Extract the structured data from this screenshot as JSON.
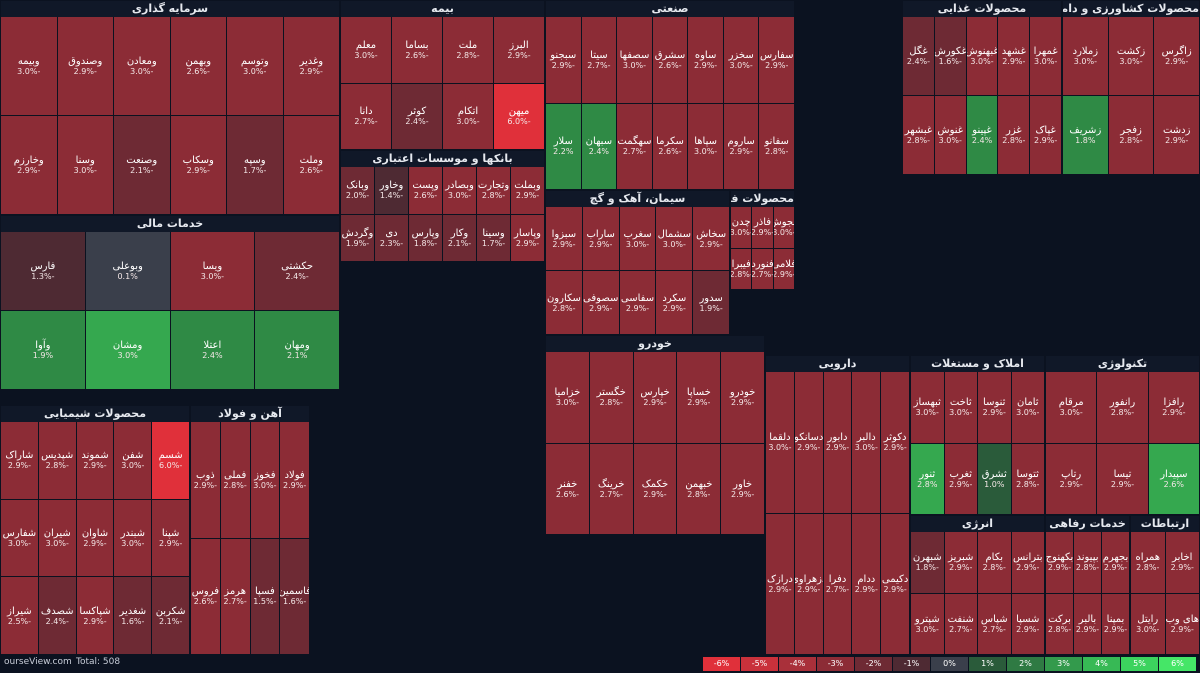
{
  "footer": {
    "brand": "ourseView.com",
    "total": "Total: 508",
    "legend": [
      {
        "label": "-6%",
        "color": "#e0303a"
      },
      {
        "label": "-5%",
        "color": "#c9313b"
      },
      {
        "label": "-4%",
        "color": "#a9303a"
      },
      {
        "label": "-3%",
        "color": "#8c2c36"
      },
      {
        "label": "-2%",
        "color": "#6e2a34"
      },
      {
        "label": "-1%",
        "color": "#4e2a33"
      },
      {
        "label": "0%",
        "color": "#3a3f4b"
      },
      {
        "label": "1%",
        "color": "#2a5b3a"
      },
      {
        "label": "2%",
        "color": "#2f7a43"
      },
      {
        "label": "3%",
        "color": "#339a4c"
      },
      {
        "label": "4%",
        "color": "#37b955"
      },
      {
        "label": "5%",
        "color": "#3cd35e"
      },
      {
        "label": "6%",
        "color": "#45e667"
      }
    ]
  },
  "sectors": [
    {
      "id": "bank",
      "title": "بانکها و موسسات اعتباری",
      "cols": 6,
      "tiles": [
        {
          "s": "وبملت",
          "p": -2.9
        },
        {
          "s": "وتجارت",
          "p": -2.8
        },
        {
          "s": "وبصادر",
          "p": -3.0
        },
        {
          "s": "وپست",
          "p": -2.6
        },
        {
          "s": "وخاور",
          "p": -1.4
        },
        {
          "s": "وبانک",
          "p": -2.0
        },
        {
          "s": "وپاسار",
          "p": -2.9
        },
        {
          "s": "وسینا",
          "p": -1.7
        },
        {
          "s": "وکار",
          "p": -2.1
        },
        {
          "s": "وپارس",
          "p": -1.8
        },
        {
          "s": "دی",
          "p": -2.3
        },
        {
          "s": "وگردش",
          "p": -1.9
        }
      ]
    },
    {
      "id": "insurance",
      "title": "بیمه",
      "cols": 4,
      "tiles": [
        {
          "s": "البرز",
          "p": -2.9
        },
        {
          "s": "ملت",
          "p": -2.8
        },
        {
          "s": "بساما",
          "p": -2.6
        },
        {
          "s": "معلم",
          "p": -3.0
        },
        {
          "s": "میهن",
          "p": -6.0
        },
        {
          "s": "اتکام",
          "p": -3.0
        },
        {
          "s": "کوثر",
          "p": -2.4
        },
        {
          "s": "دانا",
          "p": -2.7
        }
      ]
    },
    {
      "id": "investment",
      "title": "سرمایه گذاری",
      "cols": 6,
      "tiles": [
        {
          "s": "وغدیر",
          "p": -2.9
        },
        {
          "s": "وتوسم",
          "p": -3.0
        },
        {
          "s": "وبهمن",
          "p": -2.6
        },
        {
          "s": "ومعادن",
          "p": -3.0
        },
        {
          "s": "وصندوق",
          "p": -2.9
        },
        {
          "s": "وبیمه",
          "p": -3.0
        },
        {
          "s": "وملت",
          "p": -2.6
        },
        {
          "s": "وسپه",
          "p": -1.7
        },
        {
          "s": "وسکاب",
          "p": -2.9
        },
        {
          "s": "وصنعت",
          "p": -2.1
        },
        {
          "s": "وسنا",
          "p": -3.0
        },
        {
          "s": "وخارزم",
          "p": -2.9
        }
      ]
    },
    {
      "id": "misc",
      "title": "خدمات مالی",
      "cols": 4,
      "tiles": [
        {
          "s": "حکشتی",
          "p": -2.4
        },
        {
          "s": "ویسا",
          "p": -3.0
        },
        {
          "s": "وبوعلی",
          "p": 0.1
        },
        {
          "s": "فارس",
          "p": -1.3
        },
        {
          "s": "ومهان",
          "p": 2.1
        },
        {
          "s": "اعتلا",
          "p": 2.4
        },
        {
          "s": "ومشان",
          "p": 3.0
        },
        {
          "s": "وآوا",
          "p": 1.9
        }
      ]
    },
    {
      "id": "industrial",
      "title": "صنعتی",
      "cols": 7,
      "tiles": [
        {
          "s": "سفارس",
          "p": -2.9
        },
        {
          "s": "سخزر",
          "p": -3.0
        },
        {
          "s": "ساوه",
          "p": -2.9
        },
        {
          "s": "سشرق",
          "p": -2.6
        },
        {
          "s": "سصفها",
          "p": -3.0
        },
        {
          "s": "سیتا",
          "p": -2.7
        },
        {
          "s": "سبجنو",
          "p": -2.9
        },
        {
          "s": "سفانو",
          "p": -2.8
        },
        {
          "s": "ساروم",
          "p": -2.9
        },
        {
          "s": "سپاها",
          "p": -3.0
        },
        {
          "s": "سکرما",
          "p": -2.6
        },
        {
          "s": "سهگمت",
          "p": -2.7
        },
        {
          "s": "سبهان",
          "p": 2.4
        },
        {
          "s": "سلار",
          "p": 2.2
        }
      ]
    },
    {
      "id": "metal",
      "title": "محصولات فلزی",
      "cols": 3,
      "tiles": [
        {
          "s": "فجوش",
          "p": -3.0
        },
        {
          "s": "فاذر",
          "p": -2.9
        },
        {
          "s": "چدن",
          "p": -3.0
        },
        {
          "s": "فلامی",
          "p": -2.9
        },
        {
          "s": "فنورد",
          "p": -2.7
        },
        {
          "s": "فیبرا",
          "p": -2.8
        }
      ]
    },
    {
      "id": "foods",
      "title": "محصولات غذایی",
      "cols": 5,
      "tiles": [
        {
          "s": "غمهرا",
          "p": -3.0
        },
        {
          "s": "غشهد",
          "p": -2.9
        },
        {
          "s": "غبهنوش",
          "p": -3.0
        },
        {
          "s": "غکورش",
          "p": -1.6
        },
        {
          "s": "غگل",
          "p": -2.4
        },
        {
          "s": "غپاک",
          "p": -2.9
        },
        {
          "s": "غزر",
          "p": -2.8
        },
        {
          "s": "غپینو",
          "p": 2.4
        },
        {
          "s": "غنوش",
          "p": -3.0
        },
        {
          "s": "غبشهر",
          "p": -2.8
        }
      ]
    },
    {
      "id": "agri",
      "title": "محصولات کشاورزی و دامپروری",
      "cols": 3,
      "tiles": [
        {
          "s": "زاگرس",
          "p": -2.9
        },
        {
          "s": "زکشت",
          "p": -3.0
        },
        {
          "s": "زملارد",
          "p": -3.0
        },
        {
          "s": "زدشت",
          "p": -2.9
        },
        {
          "s": "زفجر",
          "p": -2.8
        },
        {
          "s": "زشریف",
          "p": 1.8
        }
      ]
    },
    {
      "id": "pharma",
      "title": "دارویی",
      "cols": 5,
      "tiles": [
        {
          "s": "دکوثر",
          "p": -2.9
        },
        {
          "s": "دالبر",
          "p": -3.0
        },
        {
          "s": "دابور",
          "p": -2.9
        },
        {
          "s": "دسانکو",
          "p": -2.9
        },
        {
          "s": "دلقما",
          "p": -3.0
        },
        {
          "s": "دکیمی",
          "p": -2.9
        },
        {
          "s": "ددام",
          "p": -2.9
        },
        {
          "s": "دفرا",
          "p": -2.7
        },
        {
          "s": "دزهراوی",
          "p": -2.9
        },
        {
          "s": "درازک",
          "p": -2.9
        }
      ]
    },
    {
      "id": "realestate",
      "title": "املاک و مستغلات",
      "cols": 4,
      "tiles": [
        {
          "s": "ثامان",
          "p": -3.0
        },
        {
          "s": "ثنوسا",
          "p": -2.9
        },
        {
          "s": "ثاخت",
          "p": -3.0
        },
        {
          "s": "ثبهساز",
          "p": -3.0
        },
        {
          "s": "ثتوسا",
          "p": -2.8
        },
        {
          "s": "ثشرق",
          "p": 1.0
        },
        {
          "s": "ثغرب",
          "p": -2.9
        },
        {
          "s": "ثنور",
          "p": 2.8
        }
      ]
    },
    {
      "id": "tech",
      "title": "تکنولوژی",
      "cols": 3,
      "tiles": [
        {
          "s": "رافزا",
          "p": -2.9
        },
        {
          "s": "رانفور",
          "p": -2.8
        },
        {
          "s": "مرقام",
          "p": -3.0
        },
        {
          "s": "سپیدار",
          "p": 2.6
        },
        {
          "s": "تیسا",
          "p": -2.9
        },
        {
          "s": "رتاپ",
          "p": -2.9
        }
      ]
    },
    {
      "id": "chemical",
      "title": "محصولات شیمیایی",
      "cols": 5,
      "tiles": [
        {
          "s": "شسم",
          "p": -6.0
        },
        {
          "s": "شفن",
          "p": -3.0
        },
        {
          "s": "شموند",
          "p": -2.9
        },
        {
          "s": "شپدیس",
          "p": -2.8
        },
        {
          "s": "شاراک",
          "p": -2.9
        },
        {
          "s": "شپنا",
          "p": -2.9
        },
        {
          "s": "شبندر",
          "p": -3.0
        },
        {
          "s": "شاوان",
          "p": -2.9
        },
        {
          "s": "شیران",
          "p": -3.0
        },
        {
          "s": "شفارس",
          "p": -3.0
        },
        {
          "s": "شکربن",
          "p": -2.1
        },
        {
          "s": "شغدیر",
          "p": -1.6
        },
        {
          "s": "شپاکسا",
          "p": -2.9
        },
        {
          "s": "شصدف",
          "p": -2.4
        },
        {
          "s": "شیراز",
          "p": -2.5
        }
      ]
    },
    {
      "id": "iron",
      "title": "آهن و فولاد",
      "cols": 4,
      "tiles": [
        {
          "s": "فولاد",
          "p": -2.9
        },
        {
          "s": "فخوز",
          "p": -3.0
        },
        {
          "s": "فملی",
          "p": -2.8
        },
        {
          "s": "ذوب",
          "p": -2.9
        },
        {
          "s": "فاسمین",
          "p": -1.6
        },
        {
          "s": "فسپا",
          "p": -1.5
        },
        {
          "s": "هرمز",
          "p": -2.7
        },
        {
          "s": "فروس",
          "p": -2.6
        }
      ]
    },
    {
      "id": "auto",
      "title": "خودرو",
      "cols": 5,
      "tiles": [
        {
          "s": "خودرو",
          "p": -2.9
        },
        {
          "s": "خساپا",
          "p": -2.9
        },
        {
          "s": "خپارس",
          "p": -2.9
        },
        {
          "s": "خگستر",
          "p": -2.8
        },
        {
          "s": "خزامیا",
          "p": -3.0
        },
        {
          "s": "خاور",
          "p": -2.9
        },
        {
          "s": "خبهمن",
          "p": -2.8
        },
        {
          "s": "خکمک",
          "p": -2.9
        },
        {
          "s": "خرینگ",
          "p": -2.7
        },
        {
          "s": "خفنر",
          "p": -2.6
        }
      ]
    },
    {
      "id": "cement",
      "title": "سیمان، آهک و گچ",
      "cols": 5,
      "tiles": [
        {
          "s": "سخاش",
          "p": -2.9
        },
        {
          "s": "سشمال",
          "p": -3.0
        },
        {
          "s": "سغرب",
          "p": -3.0
        },
        {
          "s": "ساراب",
          "p": -2.9
        },
        {
          "s": "سبزوا",
          "p": -2.9
        },
        {
          "s": "سدور",
          "p": -1.9
        },
        {
          "s": "سکرد",
          "p": -2.9
        },
        {
          "s": "سفاسی",
          "p": -2.9
        },
        {
          "s": "سصوفی",
          "p": -2.9
        },
        {
          "s": "سکارون",
          "p": -2.8
        }
      ]
    },
    {
      "id": "utilities",
      "title": "انرژی",
      "cols": 4,
      "tiles": [
        {
          "s": "بترانس",
          "p": -2.9
        },
        {
          "s": "بکام",
          "p": -2.8
        },
        {
          "s": "شبریز",
          "p": -2.9
        },
        {
          "s": "شبهرن",
          "p": -1.8
        },
        {
          "s": "شسپا",
          "p": -2.9
        },
        {
          "s": "شپاس",
          "p": -2.7
        },
        {
          "s": "شنفت",
          "p": -2.7
        },
        {
          "s": "شپترو",
          "p": -3.0
        }
      ]
    },
    {
      "id": "telecom",
      "title": "ارتباطات",
      "cols": 2,
      "tiles": [
        {
          "s": "اخابر",
          "p": -2.9
        },
        {
          "s": "همراه",
          "p": -2.8
        },
        {
          "s": "های وب",
          "p": -2.9
        },
        {
          "s": "رایتل",
          "p": -3.0
        }
      ]
    },
    {
      "id": "services",
      "title": "خدمات رفاهی",
      "cols": 3,
      "tiles": [
        {
          "s": "بجهرم",
          "p": -2.9
        },
        {
          "s": "بپیوند",
          "p": -2.8
        },
        {
          "s": "بکهنوج",
          "p": -2.9
        },
        {
          "s": "بمپنا",
          "p": -2.9
        },
        {
          "s": "بالبر",
          "p": -2.9
        },
        {
          "s": "برکت",
          "p": -2.8
        }
      ]
    }
  ]
}
